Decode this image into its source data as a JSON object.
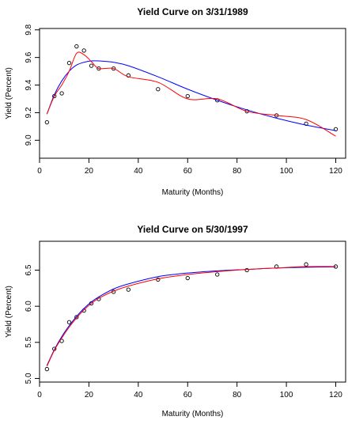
{
  "chart_data": [
    {
      "type": "scatter",
      "title": "Yield Curve on 3/31/1989",
      "xlabel": "Maturity (Months)",
      "ylabel": "Yield (Percent)",
      "xlim": [
        0,
        124
      ],
      "ylim": [
        8.87,
        9.81
      ],
      "xticks": [
        0,
        20,
        40,
        60,
        80,
        100,
        120
      ],
      "yticks": [
        9.0,
        9.2,
        9.4,
        9.6,
        9.8
      ],
      "grid": false,
      "series": [
        {
          "kind": "points",
          "color": "#000000",
          "x": [
            3,
            6,
            9,
            12,
            15,
            18,
            21,
            24,
            30,
            36,
            48,
            60,
            72,
            84,
            96,
            108,
            120
          ],
          "y": [
            9.13,
            9.32,
            9.34,
            9.56,
            9.68,
            9.65,
            9.54,
            9.52,
            9.52,
            9.47,
            9.37,
            9.32,
            9.29,
            9.21,
            9.18,
            9.12,
            9.08
          ]
        },
        {
          "kind": "line",
          "color": "#0000ff",
          "x": [
            3,
            6,
            9,
            12,
            15,
            18,
            21,
            24,
            30,
            36,
            48,
            60,
            72,
            84,
            96,
            108,
            120
          ],
          "y": [
            9.19,
            9.33,
            9.43,
            9.5,
            9.545,
            9.565,
            9.575,
            9.575,
            9.565,
            9.54,
            9.46,
            9.37,
            9.29,
            9.22,
            9.16,
            9.11,
            9.07
          ]
        },
        {
          "kind": "line",
          "color": "#ff0000",
          "x": [
            3,
            6,
            9,
            12,
            15,
            18,
            21,
            24,
            30,
            36,
            48,
            60,
            72,
            84,
            96,
            108,
            120
          ],
          "y": [
            9.19,
            9.32,
            9.4,
            9.5,
            9.63,
            9.62,
            9.57,
            9.52,
            9.52,
            9.46,
            9.42,
            9.3,
            9.3,
            9.21,
            9.18,
            9.15,
            9.03
          ]
        }
      ]
    },
    {
      "type": "scatter",
      "title": "Yield Curve on 5/30/1997",
      "xlabel": "Maturity (Months)",
      "ylabel": "Yield (Percent)",
      "xlim": [
        0,
        124
      ],
      "ylim": [
        4.95,
        6.9
      ],
      "xticks": [
        0,
        20,
        40,
        60,
        80,
        100,
        120
      ],
      "yticks": [
        5.0,
        5.5,
        6.0,
        6.5
      ],
      "grid": false,
      "series": [
        {
          "kind": "points",
          "color": "#000000",
          "x": [
            3,
            6,
            9,
            12,
            15,
            18,
            21,
            24,
            30,
            36,
            48,
            60,
            72,
            84,
            96,
            108,
            120
          ],
          "y": [
            5.13,
            5.41,
            5.52,
            5.78,
            5.85,
            5.94,
            6.04,
            6.1,
            6.2,
            6.23,
            6.37,
            6.39,
            6.44,
            6.5,
            6.55,
            6.58,
            6.55
          ]
        },
        {
          "kind": "line",
          "color": "#0000ff",
          "x": [
            3,
            6,
            9,
            12,
            15,
            18,
            21,
            24,
            30,
            36,
            48,
            60,
            72,
            84,
            96,
            108,
            120
          ],
          "y": [
            5.18,
            5.4,
            5.58,
            5.73,
            5.86,
            5.97,
            6.06,
            6.13,
            6.24,
            6.31,
            6.41,
            6.46,
            6.49,
            6.51,
            6.53,
            6.54,
            6.545
          ]
        },
        {
          "kind": "line",
          "color": "#ff0000",
          "x": [
            3,
            6,
            9,
            12,
            15,
            18,
            21,
            24,
            30,
            36,
            48,
            60,
            72,
            84,
            96,
            108,
            120
          ],
          "y": [
            5.17,
            5.39,
            5.56,
            5.71,
            5.84,
            5.95,
            6.04,
            6.11,
            6.21,
            6.28,
            6.38,
            6.44,
            6.48,
            6.51,
            6.53,
            6.55,
            6.55
          ]
        }
      ]
    }
  ]
}
